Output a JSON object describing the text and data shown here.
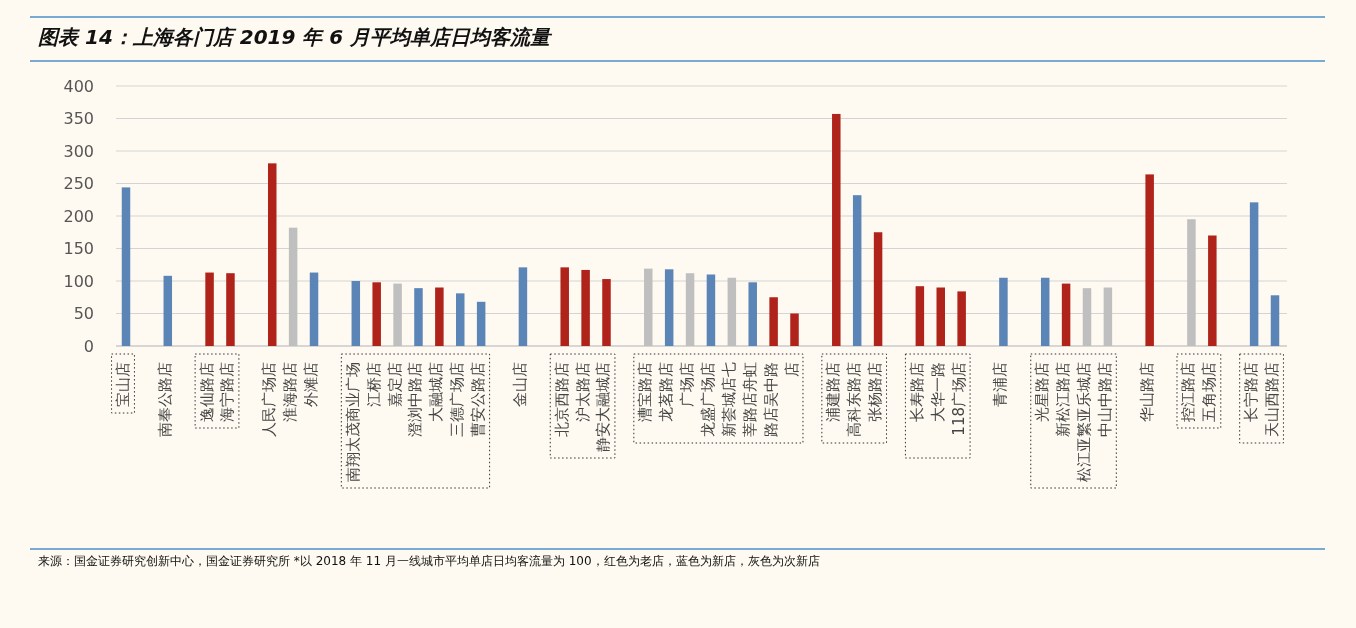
{
  "chart_data": {
    "type": "bar",
    "title": "图表 14：上海各门店 2019 年 6 月平均单店日均客流量",
    "categories": [
      "宝山店",
      null,
      "南奉公路店",
      null,
      "逸仙路店",
      "海宁路店",
      null,
      "人民广场店",
      "淮海路店",
      "外滩店",
      null,
      "南翔太茂商业广场",
      "江桥店",
      "嘉定店",
      "澄浏中路店",
      "大融城店",
      "三德广场店",
      "曹安公路店",
      null,
      "金山店",
      null,
      "北京西路店",
      "沪太路店",
      "静安大融城店",
      null,
      "漕宝路店",
      "龙茗路店",
      "广场店",
      "龙盛广场店",
      "新荟城店七",
      "莘路店舟虹",
      "路店吴中路",
      "店",
      null,
      "浦建路店",
      "高科东路店",
      "张杨路店",
      null,
      "长寿路店",
      "大华一路",
      "118广场店",
      null,
      "青浦店",
      null,
      "光星路店",
      "新松江路店",
      "松江亚繁亚乐城店",
      "中山中路店",
      null,
      "华山路店",
      null,
      "控江路店",
      "五角场店",
      null,
      "长宁路店",
      "天山西路店"
    ],
    "values": [
      244,
      null,
      108,
      null,
      113,
      112,
      null,
      281,
      182,
      113,
      null,
      100,
      98,
      96,
      89,
      90,
      81,
      68,
      null,
      121,
      null,
      121,
      117,
      103,
      null,
      119,
      118,
      112,
      110,
      105,
      98,
      75,
      50,
      null,
      357,
      232,
      175,
      null,
      92,
      90,
      84,
      null,
      105,
      null,
      105,
      96,
      89,
      90,
      null,
      264,
      null,
      195,
      170,
      null,
      221,
      78
    ],
    "colors": [
      "#5b84b7",
      null,
      "#5b84b7",
      null,
      "#b0231b",
      "#b0231b",
      null,
      "#b0231b",
      "#bfbfbf",
      "#5b84b7",
      null,
      "#5b84b7",
      "#b0231b",
      "#bfbfbf",
      "#5b84b7",
      "#b0231b",
      "#5b84b7",
      "#5b84b7",
      null,
      "#5b84b7",
      null,
      "#b0231b",
      "#b0231b",
      "#b0231b",
      null,
      "#bfbfbf",
      "#5b84b7",
      "#bfbfbf",
      "#5b84b7",
      "#bfbfbf",
      "#5b84b7",
      "#b0231b",
      "#b0231b",
      null,
      "#b0231b",
      "#5b84b7",
      "#b0231b",
      null,
      "#b0231b",
      "#b0231b",
      "#b0231b",
      null,
      "#5b84b7",
      null,
      "#5b84b7",
      "#b0231b",
      "#bfbfbf",
      "#bfbfbf",
      null,
      "#b0231b",
      null,
      "#bfbfbf",
      "#b0231b",
      null,
      "#5b84b7",
      "#5b84b7"
    ],
    "ylim": [
      0,
      400
    ],
    "yticks": [
      0,
      50,
      100,
      150,
      200,
      250,
      300,
      350,
      400
    ],
    "grid": "y",
    "annotations": [
      "来源：国金证券研究创新中心，国金证券研究所 *以 2018 年 11 月一线城市平均单店日均客流量为 100，红色为老店，蓝色为新店，灰色为次新店"
    ]
  }
}
